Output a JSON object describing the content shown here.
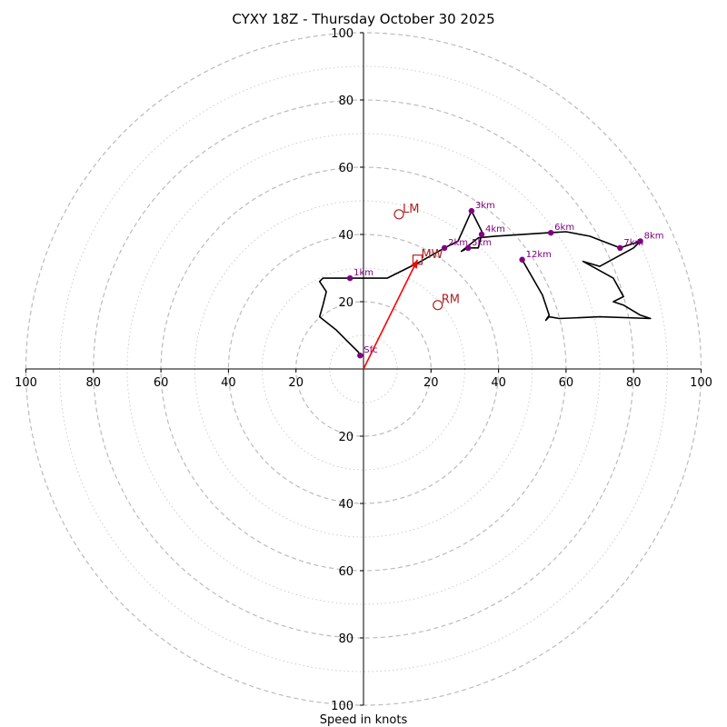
{
  "chart_data": {
    "type": "line",
    "subtype": "hodograph",
    "title": "CYXY 18Z - Thursday October 30 2025",
    "xlabel": "Speed in knots",
    "ylabel": "",
    "xlim": [
      -100,
      100
    ],
    "ylim": [
      -100,
      100
    ],
    "ticks": {
      "x": [
        -100,
        -80,
        -60,
        -40,
        -20,
        20,
        40,
        60,
        80,
        100
      ],
      "y": [
        -100,
        -80,
        -60,
        -40,
        -20,
        20,
        40,
        60,
        80,
        100
      ],
      "x_labels": [
        "100",
        "80",
        "60",
        "40",
        "20",
        "20",
        "40",
        "60",
        "80",
        "100"
      ],
      "y_labels": [
        "100",
        "80",
        "60",
        "40",
        "20",
        "20",
        "40",
        "60",
        "80",
        "100"
      ]
    },
    "rings": {
      "major": [
        20,
        40,
        60,
        80,
        100
      ],
      "minor": [
        10,
        30,
        50,
        70,
        90
      ],
      "major_style": "dashed",
      "minor_style": "dotted"
    },
    "series": [
      {
        "name": "wind profile",
        "color": "#000000",
        "points": [
          [
            -1,
            4
          ],
          [
            -1.5,
            5
          ],
          [
            -5,
            8.5
          ],
          [
            -8,
            11.5
          ],
          [
            -13,
            15.5
          ],
          [
            -12,
            19
          ],
          [
            -11,
            23
          ],
          [
            -13,
            26
          ],
          [
            -12,
            27
          ],
          [
            -4,
            27
          ],
          [
            7,
            27
          ],
          [
            17,
            32
          ],
          [
            24,
            36
          ],
          [
            28,
            38
          ],
          [
            32,
            47
          ],
          [
            35,
            41
          ],
          [
            35,
            40
          ],
          [
            34,
            36
          ],
          [
            31,
            36
          ],
          [
            29,
            35
          ],
          [
            34,
            39
          ],
          [
            39,
            39.5
          ],
          [
            55,
            40.5
          ],
          [
            60,
            40.8
          ],
          [
            67,
            39.5
          ],
          [
            76,
            36
          ],
          [
            82,
            38
          ],
          [
            80,
            36
          ],
          [
            70,
            30.5
          ],
          [
            65,
            32
          ],
          [
            74,
            27
          ],
          [
            77,
            21.5
          ],
          [
            74,
            20
          ],
          [
            77,
            19
          ],
          [
            82,
            16
          ],
          [
            85,
            15
          ],
          [
            70,
            15.5
          ],
          [
            58,
            15
          ],
          [
            55,
            15.5
          ],
          [
            54,
            14.5
          ],
          [
            55,
            16
          ],
          [
            53,
            22
          ],
          [
            47,
            32.5
          ]
        ]
      }
    ],
    "height_markers": [
      {
        "label": "Sfc",
        "u": -1,
        "v": 4
      },
      {
        "label": "1km",
        "u": -4,
        "v": 27
      },
      {
        "label": "2km",
        "u": 24,
        "v": 36
      },
      {
        "label": "3km",
        "u": 32,
        "v": 47
      },
      {
        "label": "4km",
        "u": 35,
        "v": 40
      },
      {
        "label": "5km",
        "u": 31,
        "v": 36
      },
      {
        "label": "6km",
        "u": 55.5,
        "v": 40.5
      },
      {
        "label": "7km",
        "u": 76,
        "v": 36
      },
      {
        "label": "8km",
        "u": 82,
        "v": 38
      },
      {
        "label": "12km",
        "u": 47,
        "v": 32.5
      }
    ],
    "storm_motion": [
      {
        "label": "LM",
        "u": 10.5,
        "v": 46,
        "marker": "circle"
      },
      {
        "label": "RM",
        "u": 22,
        "v": 19,
        "marker": "circle"
      },
      {
        "label": "MW",
        "u": 16,
        "v": 32.5,
        "marker": "square"
      }
    ],
    "mean_wind_vector": {
      "from": [
        0,
        0
      ],
      "to": [
        16,
        32.5
      ],
      "color": "#ff0000"
    },
    "colors": {
      "profile": "#000000",
      "height_marker": "#800080",
      "storm_motion": "#b22222",
      "vector": "#ff0000",
      "rings": "#bbbbbb"
    }
  }
}
